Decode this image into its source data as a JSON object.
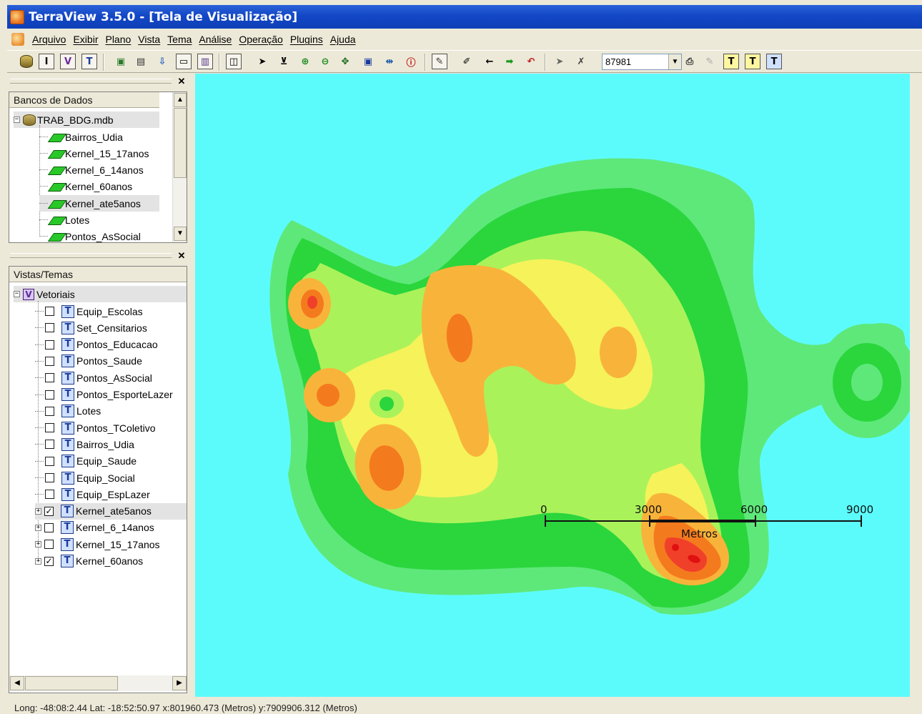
{
  "window": {
    "title": "TerraView 3.5.0 - [Tela de Visualização]"
  },
  "menu": [
    "Arquivo",
    "Exibir",
    "Plano",
    "Vista",
    "Tema",
    "Análise",
    "Operação",
    "Plugins",
    "Ajuda"
  ],
  "toolbar": {
    "scale_value": "87981"
  },
  "databases_panel": {
    "header": "Bancos de Dados",
    "database": "TRAB_BDG.mdb",
    "layers": [
      "Bairros_Udia",
      "Kernel_15_17anos",
      "Kernel_6_14anos",
      "Kernel_60anos",
      "Kernel_ate5anos",
      "Lotes",
      "Pontos_AsSocial"
    ]
  },
  "views_panel": {
    "header": "Vistas/Temas",
    "view": "Vetoriais",
    "themes": [
      {
        "label": "Equip_Escolas",
        "checked": false
      },
      {
        "label": "Set_Censitarios",
        "checked": false
      },
      {
        "label": "Pontos_Educacao",
        "checked": false
      },
      {
        "label": "Pontos_Saude",
        "checked": false
      },
      {
        "label": "Pontos_AsSocial",
        "checked": false
      },
      {
        "label": "Pontos_EsporteLazer",
        "checked": false
      },
      {
        "label": "Lotes",
        "checked": false
      },
      {
        "label": "Pontos_TColetivo",
        "checked": false
      },
      {
        "label": "Bairros_Udia",
        "checked": false
      },
      {
        "label": "Equip_Saude",
        "checked": false
      },
      {
        "label": "Equip_Social",
        "checked": false
      },
      {
        "label": "Equip_EspLazer",
        "checked": false
      },
      {
        "label": "Kernel_ate5anos",
        "checked": true
      },
      {
        "label": "Kernel_6_14anos",
        "checked": false
      },
      {
        "label": "Kernel_15_17anos",
        "checked": false
      },
      {
        "label": "Kernel_60anos",
        "checked": true
      }
    ]
  },
  "map": {
    "colors": {
      "background": "#5cfbfb",
      "level1": "#5ee87a",
      "level2": "#2ad63c",
      "level3": "#aaf25a",
      "level4": "#f6f25a",
      "level5": "#f8b43a",
      "level6": "#f47a1e",
      "level7": "#f0402a",
      "level8": "#e01010"
    },
    "scale_bar": {
      "ticks": [
        "0",
        "3000",
        "6000",
        "9000"
      ],
      "unit": "Metros"
    }
  },
  "status": {
    "text": "Long: -48:08:2.44 Lat: -18:52:50.97  x:801960.473 (Metros)  y:7909906.312 (Metros)"
  }
}
